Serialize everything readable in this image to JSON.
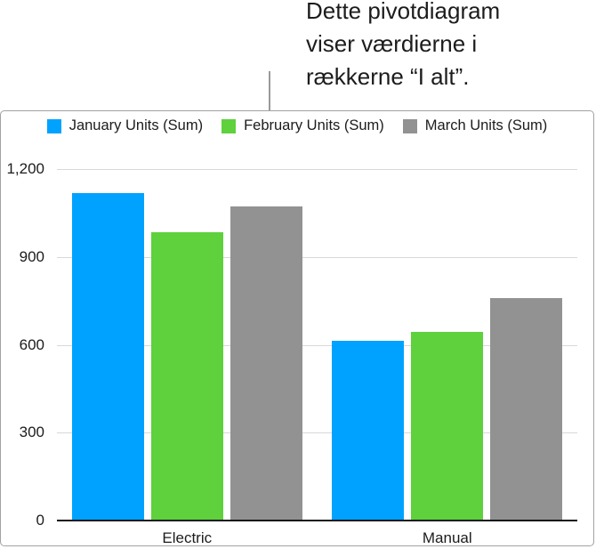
{
  "annotation": {
    "lines": [
      "Dette pivotdiagram",
      "viser værdierne i",
      "rækkerne “I alt”."
    ]
  },
  "chart_data": {
    "type": "bar",
    "title": "",
    "categories": [
      "Electric",
      "Manual"
    ],
    "series": [
      {
        "name": "January Units (Sum)",
        "color": "#00A2FF",
        "values": [
          1115,
          610
        ]
      },
      {
        "name": "February Units (Sum)",
        "color": "#5ED13D",
        "values": [
          980,
          640
        ]
      },
      {
        "name": "March Units (Sum)",
        "color": "#929292",
        "values": [
          1070,
          755
        ]
      }
    ],
    "xlabel": "",
    "ylabel": "",
    "ylim": [
      0,
      1200
    ],
    "yticks": [
      0,
      300,
      600,
      900,
      1200
    ],
    "ytick_labels": [
      "0",
      "300",
      "600",
      "900",
      "1,200"
    ],
    "grid": true,
    "legend_position": "top",
    "grid_color": "#D8D8D8",
    "axis_color": "#151515"
  }
}
